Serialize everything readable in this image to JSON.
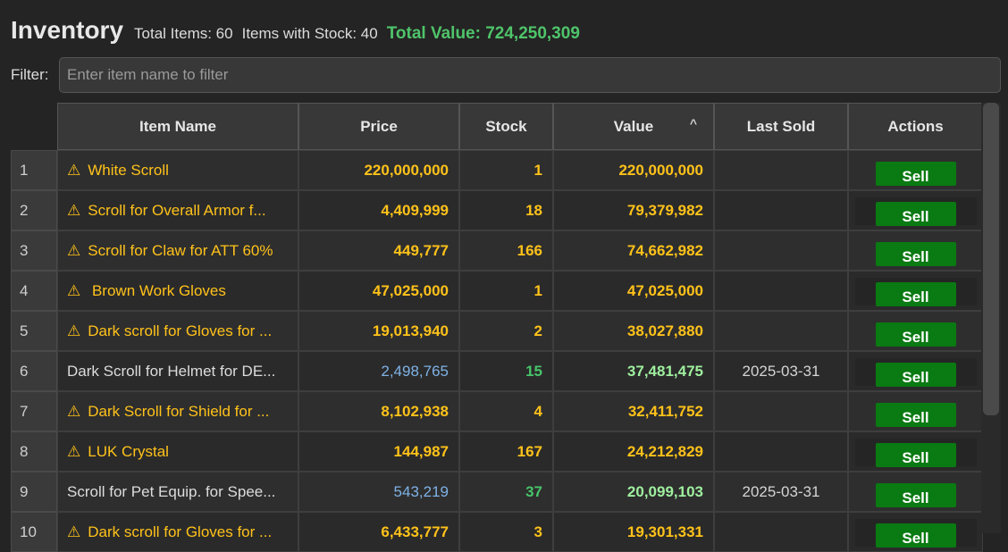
{
  "header": {
    "title": "Inventory",
    "total_items": "Total Items: 60",
    "items_with_stock": "Items with Stock: 40",
    "total_value": "Total Value: 724,250,309"
  },
  "filter": {
    "label": "Filter:",
    "placeholder": "Enter item name to filter",
    "value": ""
  },
  "table": {
    "columns": [
      "Item Name",
      "Price",
      "Stock",
      "Value",
      "Last Sold",
      "Actions"
    ],
    "sorted_column": "Value",
    "rows": [
      {
        "index": "1",
        "name": "White Scroll",
        "price": "220,000,000",
        "stock": "1",
        "value": "220,000,000",
        "last_sold": "",
        "action": "Sell",
        "warning": true
      },
      {
        "index": "2",
        "name": "Scroll for Overall Armor f...",
        "price": "4,409,999",
        "stock": "18",
        "value": "79,379,982",
        "last_sold": "",
        "action": "Sell",
        "warning": true
      },
      {
        "index": "3",
        "name": "Scroll for Claw for ATT 60%",
        "price": "449,777",
        "stock": "166",
        "value": "74,662,982",
        "last_sold": "",
        "action": "Sell",
        "warning": true
      },
      {
        "index": "4",
        "name": " Brown Work Gloves",
        "price": "47,025,000",
        "stock": "1",
        "value": "47,025,000",
        "last_sold": "",
        "action": "Sell",
        "warning": true
      },
      {
        "index": "5",
        "name": "Dark scroll for Gloves for ...",
        "price": "19,013,940",
        "stock": "2",
        "value": "38,027,880",
        "last_sold": "",
        "action": "Sell",
        "warning": true
      },
      {
        "index": "6",
        "name": "Dark Scroll for Helmet for DE...",
        "price": "2,498,765",
        "stock": "15",
        "value": "37,481,475",
        "last_sold": "2025-03-31",
        "action": "Sell",
        "warning": false
      },
      {
        "index": "7",
        "name": "Dark Scroll for Shield for ...",
        "price": "8,102,938",
        "stock": "4",
        "value": "32,411,752",
        "last_sold": "",
        "action": "Sell",
        "warning": true
      },
      {
        "index": "8",
        "name": "LUK Crystal",
        "price": "144,987",
        "stock": "167",
        "value": "24,212,829",
        "last_sold": "",
        "action": "Sell",
        "warning": true
      },
      {
        "index": "9",
        "name": "Scroll for Pet Equip. for Spee...",
        "price": "543,219",
        "stock": "37",
        "value": "20,099,103",
        "last_sold": "2025-03-31",
        "action": "Sell",
        "warning": false
      },
      {
        "index": "10",
        "name": "Dark scroll for Gloves for ...",
        "price": "6,433,777",
        "stock": "3",
        "value": "19,301,331",
        "last_sold": "",
        "action": "Sell",
        "warning": true
      }
    ]
  },
  "icons": {
    "warning": "warning-icon",
    "sort": "sort-ascending-icon"
  },
  "colors": {
    "warning_text": "#ffc21a",
    "total_value": "#4fc46a",
    "sell_button": "#0a7a12",
    "price_normal": "#7fb2e6"
  }
}
